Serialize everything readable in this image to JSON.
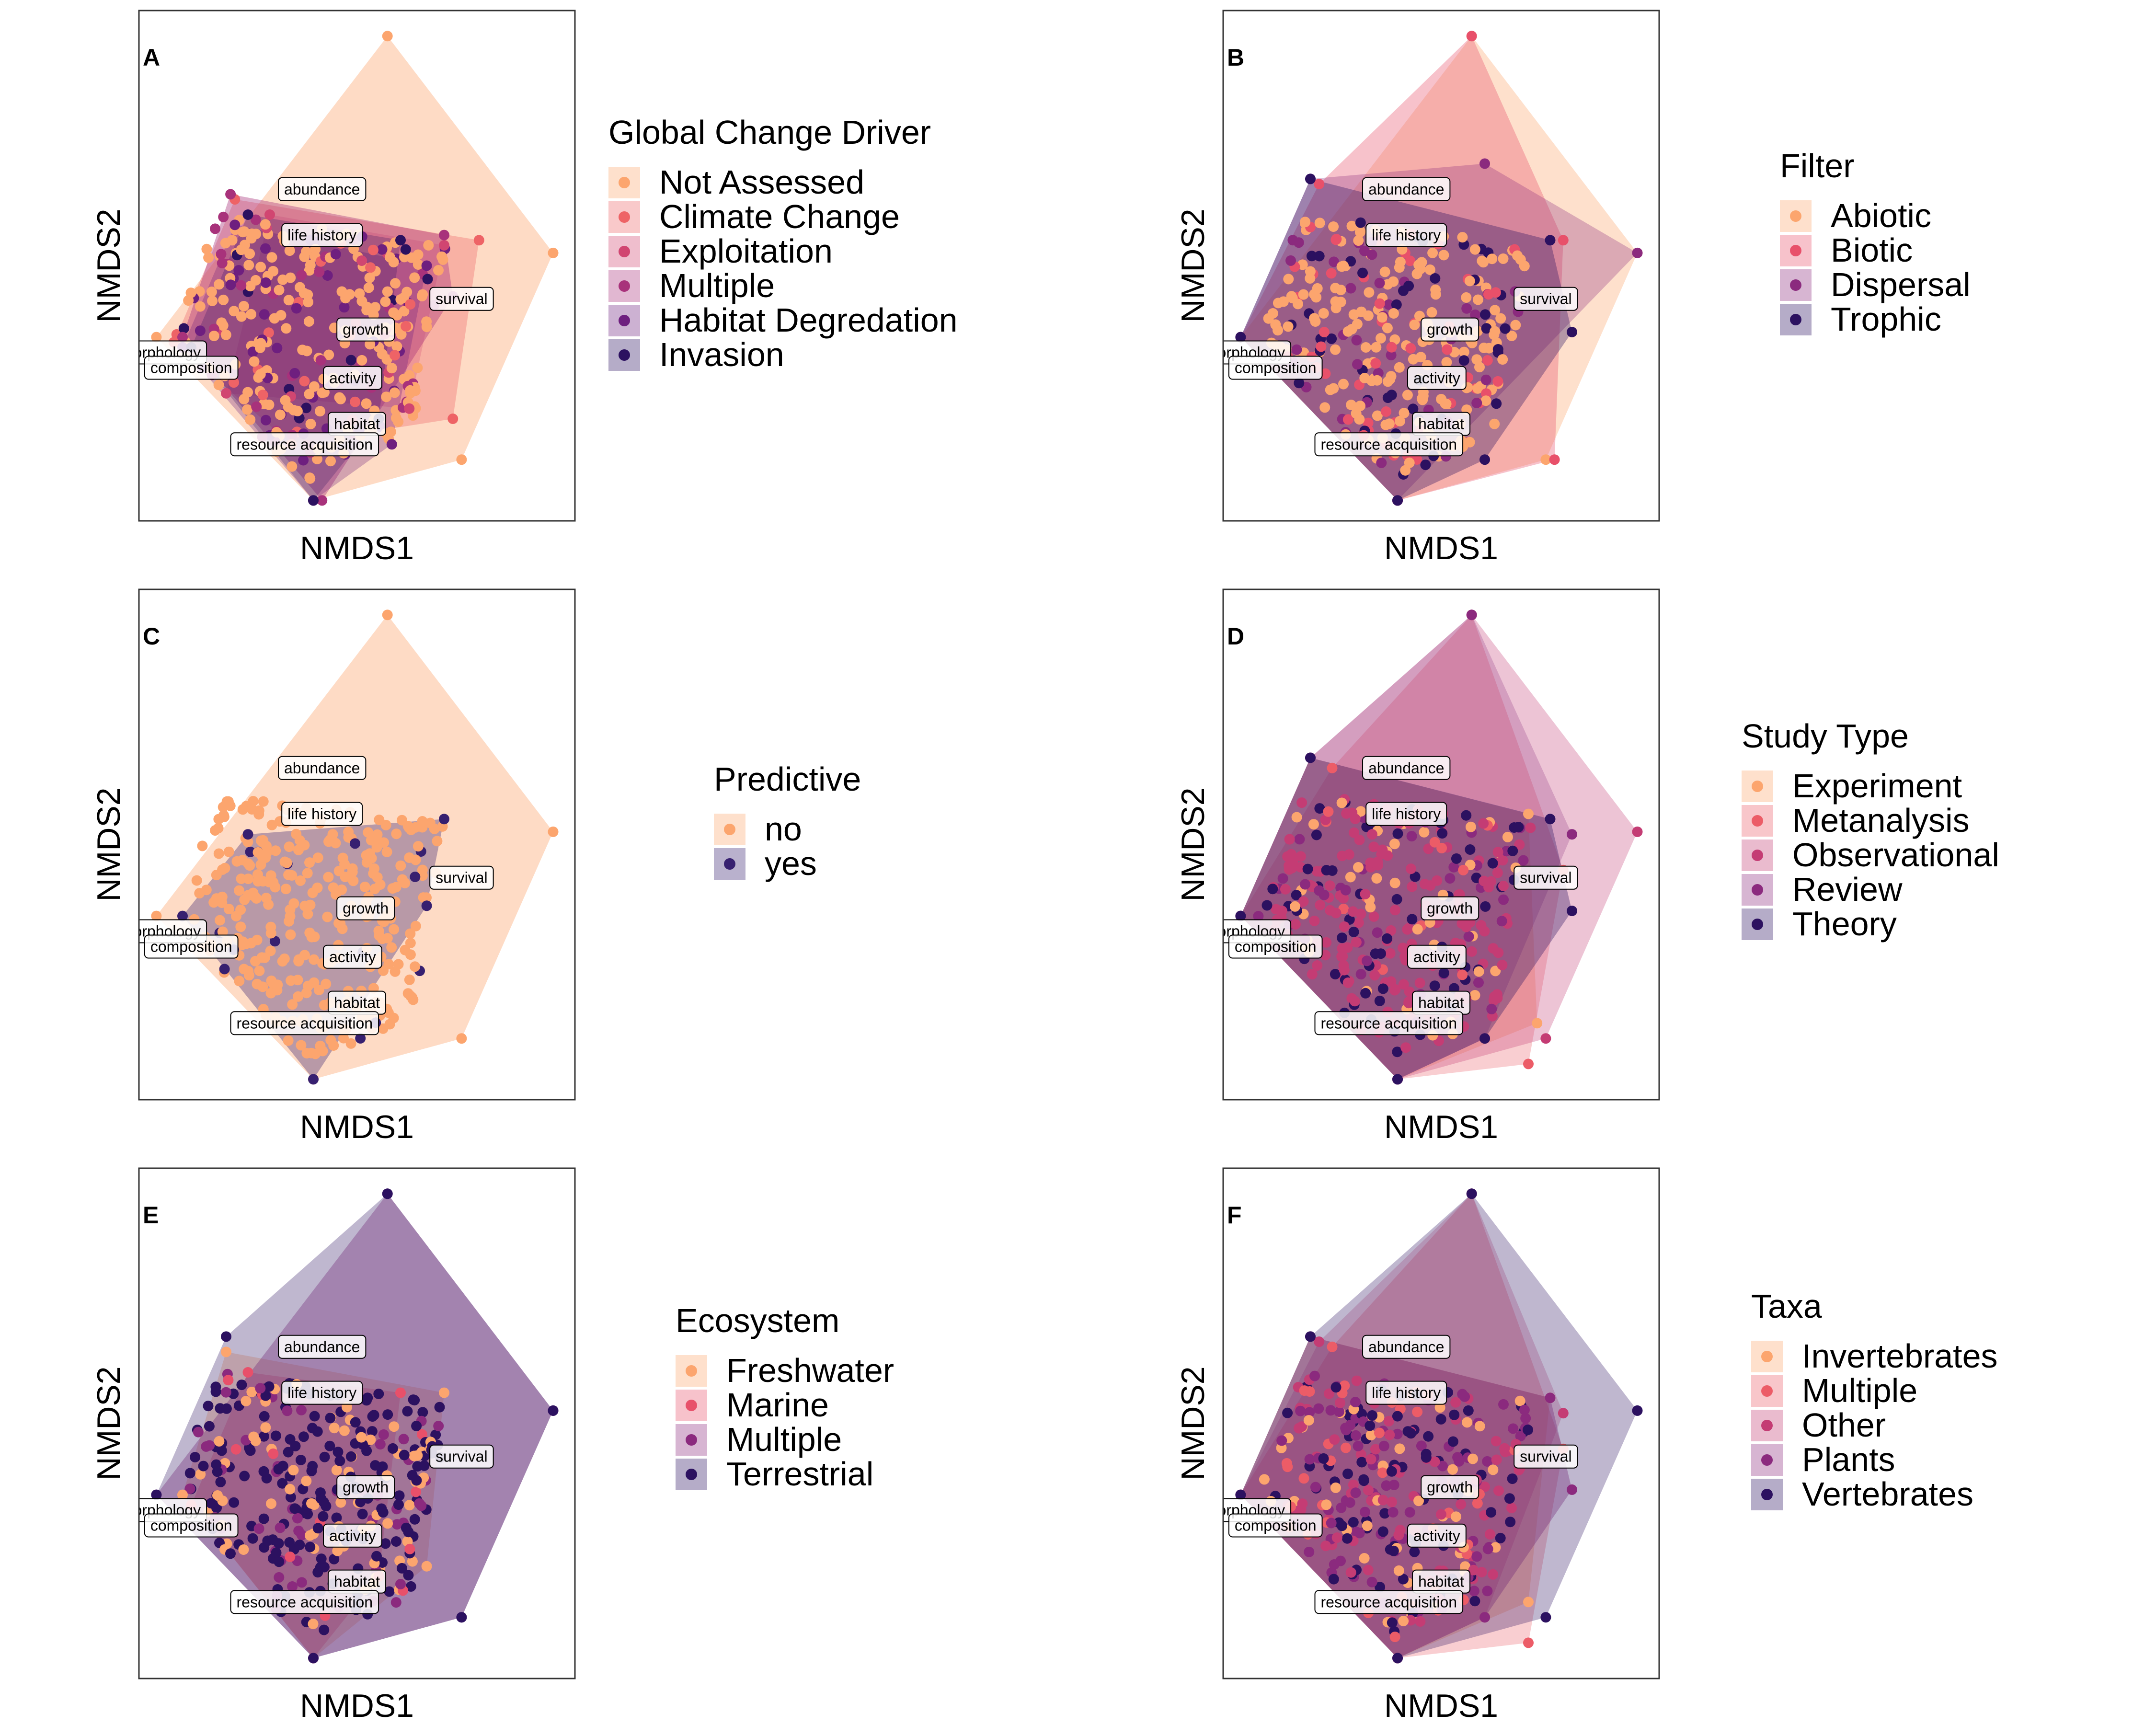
{
  "figure": {
    "x_axis_title": "NMDS1",
    "y_axis_title": "NMDS2",
    "trait_labels": [
      "abundance",
      "life history",
      "survival",
      "growth",
      "morphology",
      "composition",
      "activity",
      "habitat",
      "resource acquisition"
    ]
  },
  "palette": {
    "2": [
      "#FCA56E",
      "#372070"
    ],
    "4": [
      "#FCA56E",
      "#E8506A",
      "#8B2A7E",
      "#2C1160"
    ],
    "5": [
      "#FCA56E",
      "#EC5C67",
      "#C43C74",
      "#8B2A7E",
      "#2C1160"
    ],
    "6": [
      "#FCA56E",
      "#EE6366",
      "#D14671",
      "#A8327B",
      "#6E1F7F",
      "#2C1160"
    ]
  },
  "chart_data": [
    {
      "panel": "A",
      "type": "scatter",
      "legend_title": "Global Change Driver",
      "groups": [
        "Not Assessed",
        "Climate Change",
        "Exploitation",
        "Multiple",
        "Habitat Degredation",
        "Invasion"
      ],
      "x_axis_title": "NMDS1",
      "y_axis_title": "NMDS2",
      "grid": false,
      "legend_position": "right"
    },
    {
      "panel": "B",
      "type": "scatter",
      "legend_title": "Filter",
      "groups": [
        "Abiotic",
        "Biotic",
        "Dispersal",
        "Trophic"
      ],
      "x_axis_title": "NMDS1",
      "y_axis_title": "NMDS2",
      "grid": false,
      "legend_position": "right"
    },
    {
      "panel": "C",
      "type": "scatter",
      "legend_title": "Predictive",
      "groups": [
        "no",
        "yes"
      ],
      "x_axis_title": "NMDS1",
      "y_axis_title": "NMDS2",
      "grid": false,
      "legend_position": "right"
    },
    {
      "panel": "D",
      "type": "scatter",
      "legend_title": "Study Type",
      "groups": [
        "Experiment",
        "Metanalysis",
        "Observational",
        "Review",
        "Theory"
      ],
      "x_axis_title": "NMDS1",
      "y_axis_title": "NMDS2",
      "grid": false,
      "legend_position": "right"
    },
    {
      "panel": "E",
      "type": "scatter",
      "legend_title": "Ecosystem",
      "groups": [
        "Freshwater",
        "Marine",
        "Multiple",
        "Terrestrial"
      ],
      "x_axis_title": "NMDS1",
      "y_axis_title": "NMDS2",
      "grid": false,
      "legend_position": "right"
    },
    {
      "panel": "F",
      "type": "scatter",
      "legend_title": "Taxa",
      "groups": [
        "Invertebrates",
        "Multiple",
        "Other",
        "Plants",
        "Vertebrates"
      ],
      "x_axis_title": "NMDS1",
      "y_axis_title": "NMDS2",
      "grid": false,
      "legend_position": "right"
    }
  ]
}
